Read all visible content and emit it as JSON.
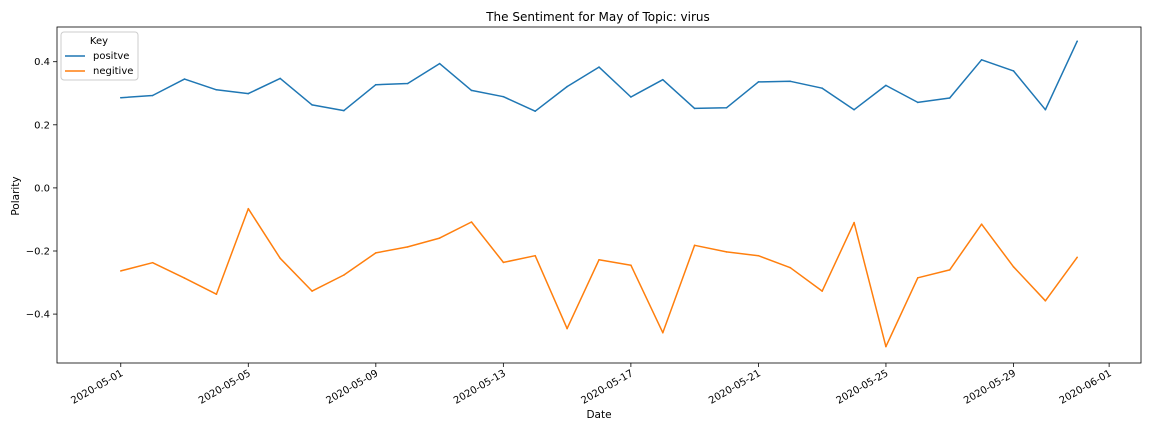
{
  "chart_data": {
    "type": "line",
    "title": "The Sentiment for May of Topic: virus",
    "xlabel": "Date",
    "ylabel": "Polarity",
    "x": [
      "2020-05-01",
      "2020-05-02",
      "2020-05-03",
      "2020-05-04",
      "2020-05-05",
      "2020-05-06",
      "2020-05-07",
      "2020-05-08",
      "2020-05-09",
      "2020-05-10",
      "2020-05-11",
      "2020-05-12",
      "2020-05-13",
      "2020-05-14",
      "2020-05-15",
      "2020-05-16",
      "2020-05-17",
      "2020-05-18",
      "2020-05-19",
      "2020-05-20",
      "2020-05-21",
      "2020-05-22",
      "2020-05-23",
      "2020-05-24",
      "2020-05-25",
      "2020-05-26",
      "2020-05-27",
      "2020-05-28",
      "2020-05-29",
      "2020-05-30",
      "2020-05-31"
    ],
    "xlim": [
      "2020-04-29",
      "2020-06-02"
    ],
    "ylim": [
      -0.555,
      0.51
    ],
    "xticks": [
      "2020-05-01",
      "2020-05-05",
      "2020-05-09",
      "2020-05-13",
      "2020-05-17",
      "2020-05-21",
      "2020-05-25",
      "2020-05-29",
      "2020-06-01"
    ],
    "yticks": [
      0.4,
      0.2,
      0.0,
      -0.2,
      -0.4
    ],
    "ytick_labels": [
      "0.4",
      "0.2",
      "0.0",
      "−0.2",
      "−0.4"
    ],
    "grid": false,
    "legend": {
      "title": "Key",
      "placement": "top-left"
    },
    "series": [
      {
        "name": "positve",
        "color": "#1f77b4",
        "values": [
          0.286,
          0.293,
          0.345,
          0.311,
          0.299,
          0.347,
          0.263,
          0.245,
          0.327,
          0.331,
          0.394,
          0.309,
          0.289,
          0.243,
          0.321,
          0.383,
          0.288,
          0.343,
          0.252,
          0.254,
          0.336,
          0.338,
          0.316,
          0.248,
          0.325,
          0.271,
          0.285,
          0.406,
          0.371,
          0.248,
          0.465
        ]
      },
      {
        "name": "negitive",
        "color": "#ff7f0e",
        "values": [
          -0.263,
          -0.237,
          -0.286,
          -0.337,
          -0.066,
          -0.223,
          -0.327,
          -0.276,
          -0.206,
          -0.187,
          -0.159,
          -0.108,
          -0.236,
          -0.215,
          -0.446,
          -0.228,
          -0.245,
          -0.459,
          -0.182,
          -0.203,
          -0.215,
          -0.253,
          -0.327,
          -0.11,
          -0.503,
          -0.285,
          -0.26,
          -0.115,
          -0.25,
          -0.358,
          -0.22
        ]
      }
    ]
  }
}
